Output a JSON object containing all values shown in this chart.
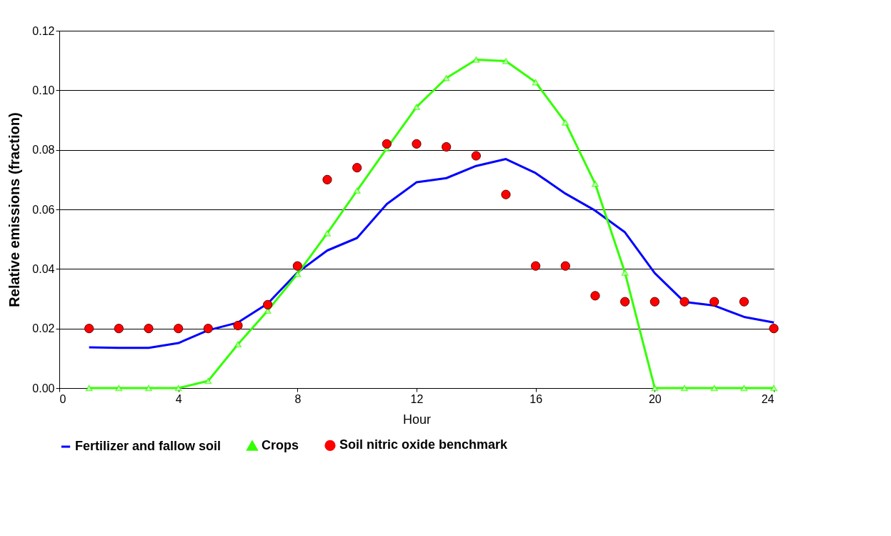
{
  "chart_data": {
    "type": "line",
    "xlabel": "Hour",
    "ylabel": "Relative emissions (fraction)",
    "x": [
      1,
      2,
      3,
      4,
      5,
      6,
      7,
      8,
      9,
      10,
      11,
      12,
      13,
      14,
      15,
      16,
      17,
      18,
      19,
      20,
      21,
      22,
      23,
      24
    ],
    "series": [
      {
        "name": "Fertilizer and fallow soil",
        "color": "#0000ff",
        "type": "line",
        "marker": "none",
        "values": [
          0.0137,
          0.0135,
          0.0135,
          0.0151,
          0.0194,
          0.022,
          0.0284,
          0.0388,
          0.0462,
          0.0504,
          0.0618,
          0.0691,
          0.0705,
          0.0746,
          0.0769,
          0.0722,
          0.0653,
          0.0596,
          0.0523,
          0.0386,
          0.0289,
          0.0277,
          0.0239,
          0.022
        ]
      },
      {
        "name": "Crops",
        "color": "#33ff00",
        "type": "line",
        "marker": "triangle",
        "values": [
          0,
          0,
          0,
          0,
          0.0024,
          0.0147,
          0.026,
          0.0383,
          0.052,
          0.0663,
          0.0805,
          0.0944,
          0.1041,
          0.1103,
          0.1098,
          0.1027,
          0.0892,
          0.0686,
          0.0388,
          0,
          0,
          0,
          0,
          0
        ]
      },
      {
        "name": "Soil nitric oxide benchmark",
        "color": "#ff0000",
        "type": "scatter",
        "marker": "circle",
        "values": [
          0.02,
          0.02,
          0.02,
          0.02,
          0.02,
          0.021,
          0.028,
          0.041,
          0.07,
          0.074,
          0.082,
          0.082,
          0.081,
          0.078,
          0.065,
          0.041,
          0.041,
          0.031,
          0.029,
          0.029,
          0.029,
          0.029,
          0.029,
          0.02
        ]
      }
    ],
    "xlim": [
      0,
      24
    ],
    "xticks": [
      0,
      4,
      8,
      12,
      16,
      20,
      24
    ],
    "ylim": [
      0,
      0.12
    ],
    "yticks": [
      {
        "value": 0,
        "label": "0.00"
      },
      0.02,
      0.04,
      0.06,
      0.08,
      {
        "value": 0.1,
        "label": "0.10"
      },
      0.12
    ],
    "line_style": "solid",
    "grid": "y",
    "legend": "bottom"
  }
}
